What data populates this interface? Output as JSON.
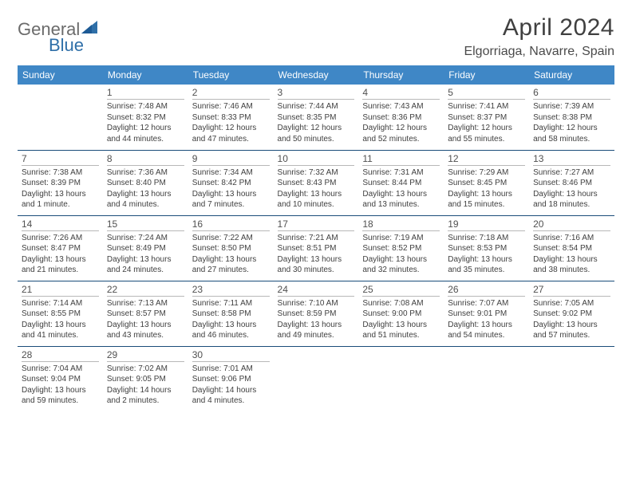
{
  "logo": {
    "text1": "General",
    "text2": "Blue",
    "color1": "#6b6b6b",
    "color2": "#2f6fa8",
    "tri_color": "#2f6fa8"
  },
  "header": {
    "title": "April 2024",
    "location": "Elgorriaga, Navarre, Spain"
  },
  "colors": {
    "header_bg": "#3f87c6",
    "header_fg": "#ffffff",
    "cell_border": "#1a4d7a",
    "daynum_rule": "#b8b8b8",
    "text": "#404040",
    "title": "#404040"
  },
  "day_headers": [
    "Sunday",
    "Monday",
    "Tuesday",
    "Wednesday",
    "Thursday",
    "Friday",
    "Saturday"
  ],
  "weeks": [
    [
      {
        "n": "",
        "txt": ""
      },
      {
        "n": "1",
        "txt": "Sunrise: 7:48 AM\nSunset: 8:32 PM\nDaylight: 12 hours and 44 minutes."
      },
      {
        "n": "2",
        "txt": "Sunrise: 7:46 AM\nSunset: 8:33 PM\nDaylight: 12 hours and 47 minutes."
      },
      {
        "n": "3",
        "txt": "Sunrise: 7:44 AM\nSunset: 8:35 PM\nDaylight: 12 hours and 50 minutes."
      },
      {
        "n": "4",
        "txt": "Sunrise: 7:43 AM\nSunset: 8:36 PM\nDaylight: 12 hours and 52 minutes."
      },
      {
        "n": "5",
        "txt": "Sunrise: 7:41 AM\nSunset: 8:37 PM\nDaylight: 12 hours and 55 minutes."
      },
      {
        "n": "6",
        "txt": "Sunrise: 7:39 AM\nSunset: 8:38 PM\nDaylight: 12 hours and 58 minutes."
      }
    ],
    [
      {
        "n": "7",
        "txt": "Sunrise: 7:38 AM\nSunset: 8:39 PM\nDaylight: 13 hours and 1 minute."
      },
      {
        "n": "8",
        "txt": "Sunrise: 7:36 AM\nSunset: 8:40 PM\nDaylight: 13 hours and 4 minutes."
      },
      {
        "n": "9",
        "txt": "Sunrise: 7:34 AM\nSunset: 8:42 PM\nDaylight: 13 hours and 7 minutes."
      },
      {
        "n": "10",
        "txt": "Sunrise: 7:32 AM\nSunset: 8:43 PM\nDaylight: 13 hours and 10 minutes."
      },
      {
        "n": "11",
        "txt": "Sunrise: 7:31 AM\nSunset: 8:44 PM\nDaylight: 13 hours and 13 minutes."
      },
      {
        "n": "12",
        "txt": "Sunrise: 7:29 AM\nSunset: 8:45 PM\nDaylight: 13 hours and 15 minutes."
      },
      {
        "n": "13",
        "txt": "Sunrise: 7:27 AM\nSunset: 8:46 PM\nDaylight: 13 hours and 18 minutes."
      }
    ],
    [
      {
        "n": "14",
        "txt": "Sunrise: 7:26 AM\nSunset: 8:47 PM\nDaylight: 13 hours and 21 minutes."
      },
      {
        "n": "15",
        "txt": "Sunrise: 7:24 AM\nSunset: 8:49 PM\nDaylight: 13 hours and 24 minutes."
      },
      {
        "n": "16",
        "txt": "Sunrise: 7:22 AM\nSunset: 8:50 PM\nDaylight: 13 hours and 27 minutes."
      },
      {
        "n": "17",
        "txt": "Sunrise: 7:21 AM\nSunset: 8:51 PM\nDaylight: 13 hours and 30 minutes."
      },
      {
        "n": "18",
        "txt": "Sunrise: 7:19 AM\nSunset: 8:52 PM\nDaylight: 13 hours and 32 minutes."
      },
      {
        "n": "19",
        "txt": "Sunrise: 7:18 AM\nSunset: 8:53 PM\nDaylight: 13 hours and 35 minutes."
      },
      {
        "n": "20",
        "txt": "Sunrise: 7:16 AM\nSunset: 8:54 PM\nDaylight: 13 hours and 38 minutes."
      }
    ],
    [
      {
        "n": "21",
        "txt": "Sunrise: 7:14 AM\nSunset: 8:55 PM\nDaylight: 13 hours and 41 minutes."
      },
      {
        "n": "22",
        "txt": "Sunrise: 7:13 AM\nSunset: 8:57 PM\nDaylight: 13 hours and 43 minutes."
      },
      {
        "n": "23",
        "txt": "Sunrise: 7:11 AM\nSunset: 8:58 PM\nDaylight: 13 hours and 46 minutes."
      },
      {
        "n": "24",
        "txt": "Sunrise: 7:10 AM\nSunset: 8:59 PM\nDaylight: 13 hours and 49 minutes."
      },
      {
        "n": "25",
        "txt": "Sunrise: 7:08 AM\nSunset: 9:00 PM\nDaylight: 13 hours and 51 minutes."
      },
      {
        "n": "26",
        "txt": "Sunrise: 7:07 AM\nSunset: 9:01 PM\nDaylight: 13 hours and 54 minutes."
      },
      {
        "n": "27",
        "txt": "Sunrise: 7:05 AM\nSunset: 9:02 PM\nDaylight: 13 hours and 57 minutes."
      }
    ],
    [
      {
        "n": "28",
        "txt": "Sunrise: 7:04 AM\nSunset: 9:04 PM\nDaylight: 13 hours and 59 minutes."
      },
      {
        "n": "29",
        "txt": "Sunrise: 7:02 AM\nSunset: 9:05 PM\nDaylight: 14 hours and 2 minutes."
      },
      {
        "n": "30",
        "txt": "Sunrise: 7:01 AM\nSunset: 9:06 PM\nDaylight: 14 hours and 4 minutes."
      },
      {
        "n": "",
        "txt": ""
      },
      {
        "n": "",
        "txt": ""
      },
      {
        "n": "",
        "txt": ""
      },
      {
        "n": "",
        "txt": ""
      }
    ]
  ]
}
